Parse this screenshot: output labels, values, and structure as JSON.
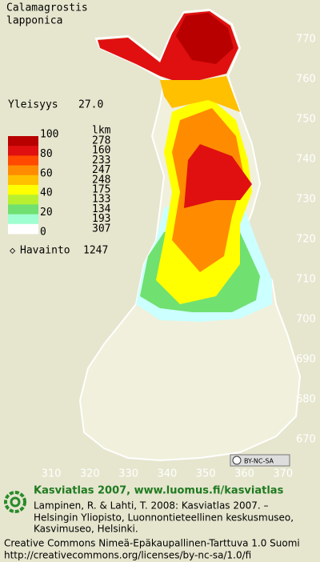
{
  "species": {
    "line1": "Calamagrostis",
    "line2": "lapponica"
  },
  "frequency": {
    "label": "Yleisyys",
    "value": "27.0"
  },
  "legend": {
    "count_header": "lkm",
    "scale_labels": [
      100,
      80,
      60,
      40,
      20,
      0
    ],
    "counts": [
      278,
      160,
      233,
      247,
      248,
      175,
      133,
      134,
      193,
      307
    ],
    "colors": [
      "#b80000",
      "#e01010",
      "#ff4a00",
      "#ff8c00",
      "#ffc000",
      "#ffff00",
      "#b8f030",
      "#70e070",
      "#a0ffd0",
      "#ffffff"
    ]
  },
  "observations": {
    "label": "Havainto",
    "value": 1247
  },
  "axes": {
    "right_labels": [
      770,
      760,
      750,
      740,
      730,
      720,
      710,
      700,
      690,
      680,
      670
    ],
    "bottom_labels": [
      310,
      320,
      330,
      340,
      350,
      360,
      370
    ]
  },
  "license_badge": "BY-NC-SA",
  "footer": {
    "site": "Kasviatlas 2007, www.luomus.fi/kasviatlas",
    "citation": [
      "Lampinen, R. & Lahti, T. 2008: Kasviatlas 2007. –",
      "Helsingin Yliopisto, Luonnontieteellinen keskusmuseo,",
      "Kasvimuseo, Helsinki."
    ],
    "license": "Creative Commons Nimeä-Epäkaupallinen-Tarttuva 1.0 Suomi",
    "license_url": "http://creativecommons.org/licenses/by-nc-sa/1.0/fi"
  }
}
